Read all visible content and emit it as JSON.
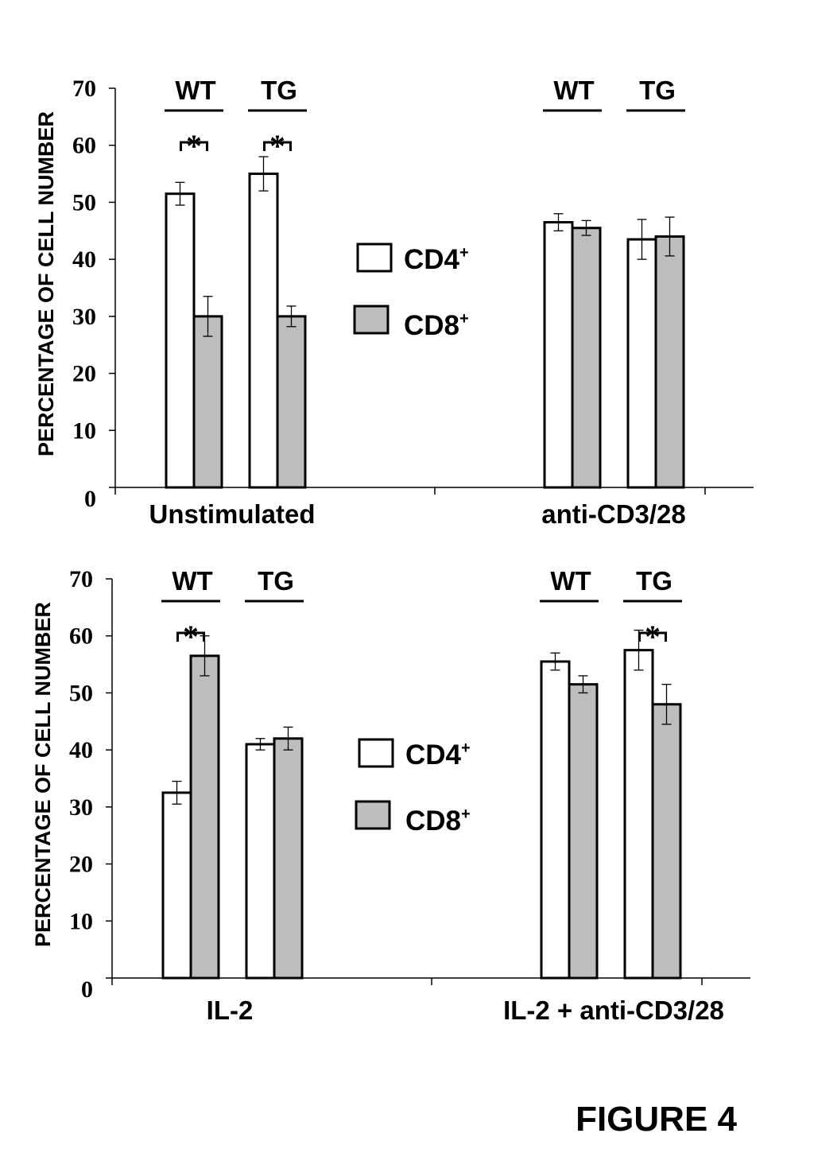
{
  "figure_label": "FIGURE 4",
  "colors": {
    "cd4": "#ffffff",
    "cd8": "#bdbdbd",
    "stroke": "#000000"
  },
  "legend": {
    "cd4_base": "CD4",
    "cd8_base": "CD8",
    "superscript": "+"
  },
  "chart_data": [
    {
      "type": "bar",
      "ylabel": "PERCENTAGE OF CELL NUMBER",
      "ylim": [
        0,
        70
      ],
      "yticks": [
        "0",
        "10",
        "20",
        "30",
        "40",
        "50",
        "60",
        "70"
      ],
      "conditions": [
        {
          "label": "Unstimulated",
          "groups": [
            {
              "name": "WT",
              "cd4": 51.5,
              "cd4_err": 2.0,
              "cd8": 30.0,
              "cd8_err": 3.5,
              "significant": true
            },
            {
              "name": "TG",
              "cd4": 55.0,
              "cd4_err": 3.0,
              "cd8": 30.0,
              "cd8_err": 1.8,
              "significant": true
            }
          ]
        },
        {
          "label": "anti-CD3/28",
          "groups": [
            {
              "name": "WT",
              "cd4": 46.5,
              "cd4_err": 1.5,
              "cd8": 45.5,
              "cd8_err": 1.3,
              "significant": false
            },
            {
              "name": "TG",
              "cd4": 43.5,
              "cd4_err": 3.5,
              "cd8": 44.0,
              "cd8_err": 3.4,
              "significant": false
            }
          ]
        }
      ]
    },
    {
      "type": "bar",
      "ylabel": "PERCENTAGE OF CELL NUMBER",
      "ylim": [
        0,
        70
      ],
      "yticks": [
        "0",
        "10",
        "20",
        "30",
        "40",
        "50",
        "60",
        "70"
      ],
      "conditions": [
        {
          "label": "IL-2",
          "groups": [
            {
              "name": "WT",
              "cd4": 32.5,
              "cd4_err": 2.0,
              "cd8": 56.5,
              "cd8_err": 3.5,
              "significant": true
            },
            {
              "name": "TG",
              "cd4": 41.0,
              "cd4_err": 1.0,
              "cd8": 42.0,
              "cd8_err": 2.0,
              "significant": false
            }
          ]
        },
        {
          "label": "IL-2 + anti-CD3/28",
          "groups": [
            {
              "name": "WT",
              "cd4": 55.5,
              "cd4_err": 1.5,
              "cd8": 51.5,
              "cd8_err": 1.5,
              "significant": false
            },
            {
              "name": "TG",
              "cd4": 57.5,
              "cd4_err": 3.5,
              "cd8": 48.0,
              "cd8_err": 3.5,
              "significant": true
            }
          ]
        }
      ]
    }
  ]
}
